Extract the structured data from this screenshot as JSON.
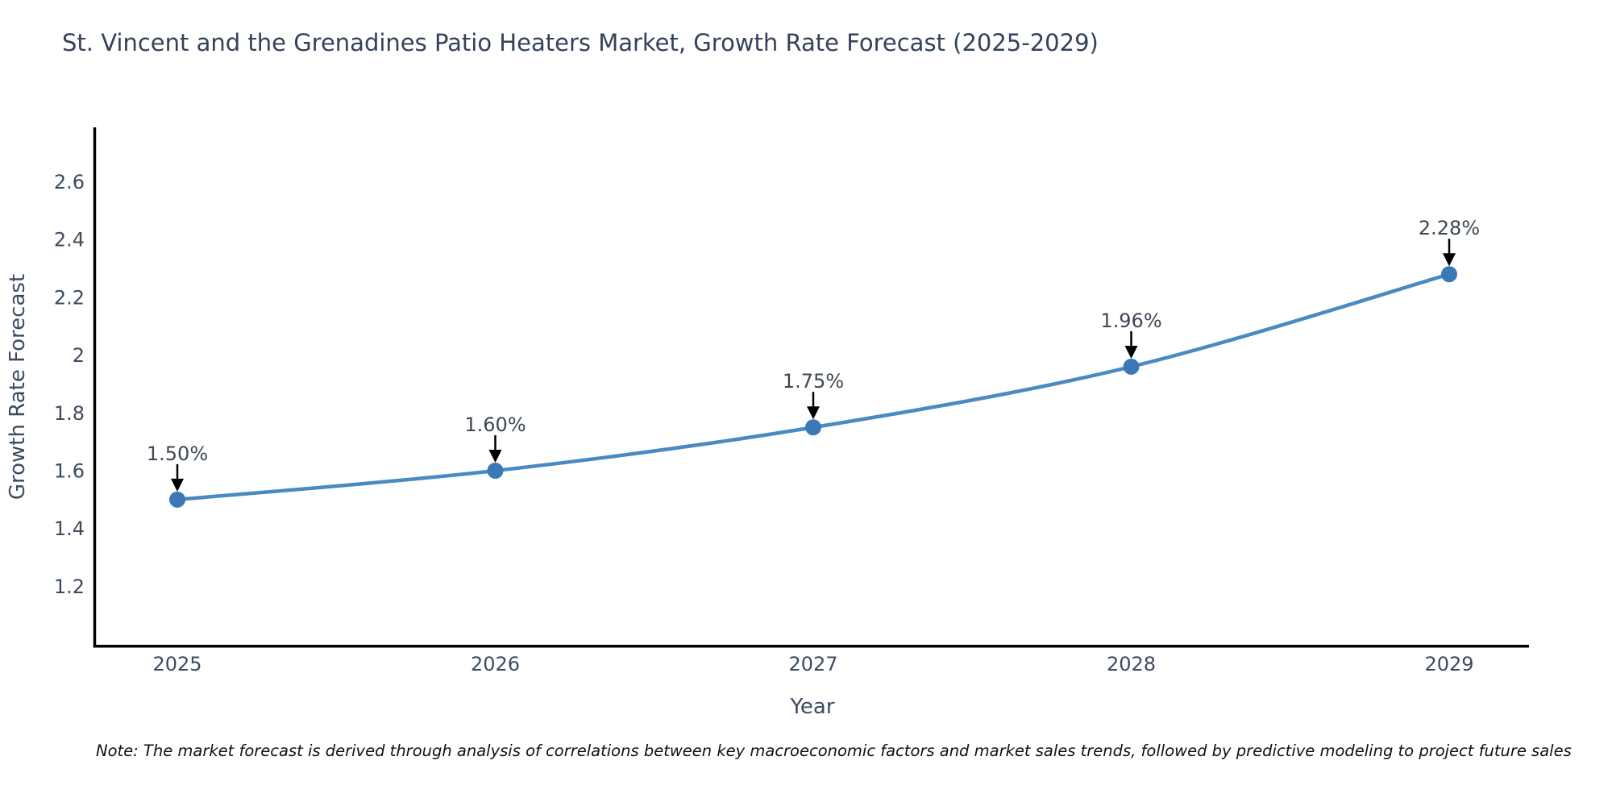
{
  "title": {
    "text": "St. Vincent and the Grenadines Patio Heaters Market, Growth Rate Forecast (2025-2029)"
  },
  "note": {
    "text": "Note: The market forecast is derived through analysis of correlations between key macroeconomic factors and market sales trends, followed by predictive modeling to project future sales"
  },
  "chart_data": {
    "type": "line",
    "x": [
      2025,
      2026,
      2027,
      2028,
      2029
    ],
    "xtick_labels": [
      "2025",
      "2026",
      "2027",
      "2028",
      "2029"
    ],
    "series": [
      {
        "name": "Growth Rate Forecast",
        "values": [
          1.5,
          1.6,
          1.75,
          1.96,
          2.28
        ]
      }
    ],
    "point_labels": [
      "1.50%",
      "1.60%",
      "1.75%",
      "1.96%",
      "2.28%"
    ],
    "title": "St. Vincent and the Grenadines Patio Heaters Market, Growth Rate Forecast (2025-2029)",
    "xlabel": "Year",
    "ylabel": "Growth Rate Forecast",
    "yticks": [
      1.2,
      1.4,
      1.6,
      1.8,
      2,
      2.2,
      2.4,
      2.6
    ],
    "ytick_labels": [
      "1.2",
      "1.4",
      "1.6",
      "1.8",
      "2",
      "2.2",
      "2.4",
      "2.6"
    ],
    "ylim": [
      0.98,
      2.83
    ],
    "grid": false,
    "legend_position": "none",
    "marker_style": "circle",
    "annotation_arrow": "down",
    "colors": {
      "line": "#4a8ac1",
      "marker": "#3a79b5",
      "axis": "#000000",
      "tick_text": "#3c4b60",
      "title_text": "#33425b",
      "annotation_text": "#3d4654",
      "arrow": "#000000",
      "background": "#ffffff"
    }
  }
}
